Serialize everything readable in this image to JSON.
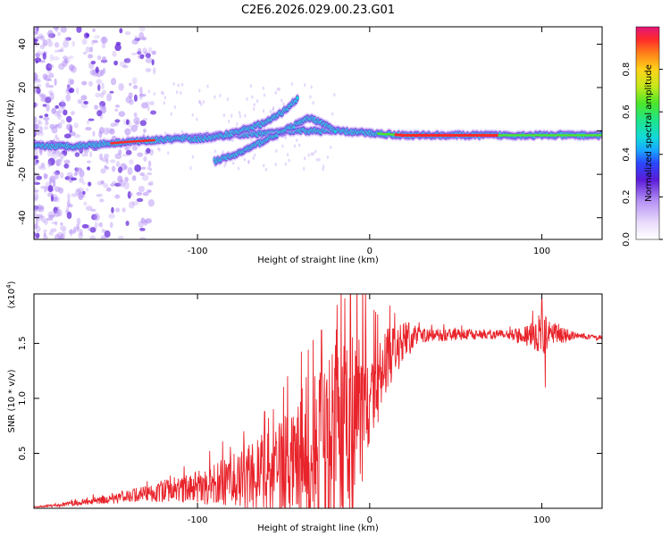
{
  "title": "C2E6.2026.029.00.23.G01",
  "colors": {
    "background": "#ffffff",
    "axis": "#000000",
    "snr_line": "#e8232a",
    "core": "#e0153a",
    "ridge": "#33e2a6",
    "glow": "#2a49ff",
    "haze": "#b692f5"
  },
  "chart_data": [
    {
      "type": "heatmap",
      "name": "spectrogram",
      "xlabel": "Height of straight line (km)",
      "ylabel": "Frequency (Hz)",
      "xlim": [
        -195,
        135
      ],
      "ylim": [
        -50,
        48
      ],
      "xticks": [
        -100,
        0,
        100
      ],
      "xtick_labels": [
        "-100",
        "0",
        "100"
      ],
      "yticks": [
        -40,
        -20,
        0,
        20,
        40
      ],
      "ytick_labels": [
        "-40",
        "-20",
        "0",
        "20",
        "40"
      ],
      "colorbar": {
        "label": "Normalized spectral amplitude",
        "range": [
          0,
          1
        ],
        "ticks": [
          0.0,
          0.2,
          0.4,
          0.6,
          0.8
        ],
        "tick_labels": [
          "0.0",
          "0.2",
          "0.4",
          "0.6",
          "0.8"
        ],
        "stops": [
          [
            0.0,
            "#ffffff"
          ],
          [
            0.08,
            "#e9dcfb"
          ],
          [
            0.18,
            "#b692f5"
          ],
          [
            0.28,
            "#5b1bd8"
          ],
          [
            0.36,
            "#2a49ff"
          ],
          [
            0.42,
            "#18a8ff"
          ],
          [
            0.48,
            "#12d9d9"
          ],
          [
            0.56,
            "#1fe58a"
          ],
          [
            0.64,
            "#4be62a"
          ],
          [
            0.72,
            "#c5e81a"
          ],
          [
            0.8,
            "#ffd21a"
          ],
          [
            0.88,
            "#ff7a1a"
          ],
          [
            0.94,
            "#ff2a2a"
          ],
          [
            1.0,
            "#e0157a"
          ]
        ]
      },
      "ridges": [
        {
          "name": "main-carrier",
          "points": [
            [
              -195,
              -7
            ],
            [
              -170,
              -7
            ],
            [
              -140,
              -5
            ],
            [
              -120,
              -4
            ],
            [
              -100,
              -3
            ],
            [
              -80,
              -2
            ],
            [
              -60,
              -1
            ],
            [
              -40,
              0
            ],
            [
              -20,
              0
            ],
            [
              0,
              -1
            ],
            [
              20,
              -2
            ],
            [
              60,
              -2
            ],
            [
              100,
              -2
            ],
            [
              135,
              -2
            ]
          ]
        },
        {
          "name": "upper-branch",
          "points": [
            [
              -105,
              -4
            ],
            [
              -90,
              -3
            ],
            [
              -75,
              0
            ],
            [
              -60,
              4
            ],
            [
              -50,
              9
            ],
            [
              -42,
              15
            ]
          ]
        },
        {
          "name": "lower-branch",
          "points": [
            [
              -90,
              -14
            ],
            [
              -78,
              -11
            ],
            [
              -65,
              -6
            ],
            [
              -55,
              -2
            ],
            [
              -45,
              2
            ],
            [
              -35,
              6
            ],
            [
              -28,
              4
            ],
            [
              -20,
              0
            ]
          ]
        }
      ]
    },
    {
      "type": "line",
      "name": "snr",
      "xlabel": "Height of straight line (km)",
      "ylabel": "SNR (10 * v/v)",
      "scale_note": "(x10^4)",
      "scale_base": "(x10",
      "scale_exp": "4",
      "scale_close": ")",
      "xlim": [
        -195,
        135
      ],
      "ylim": [
        0,
        1.95
      ],
      "xticks": [
        -100,
        0,
        100
      ],
      "xtick_labels": [
        "-100",
        "0",
        "100"
      ],
      "yticks": [
        0.5,
        1.0,
        1.5
      ],
      "ytick_labels": [
        "0.5",
        "1.0",
        "1.5"
      ],
      "envelope": [
        [
          -195,
          0.01
        ],
        [
          -180,
          0.03
        ],
        [
          -160,
          0.07
        ],
        [
          -140,
          0.11
        ],
        [
          -120,
          0.15
        ],
        [
          -100,
          0.19
        ],
        [
          -80,
          0.24
        ],
        [
          -65,
          0.3
        ],
        [
          -55,
          0.34
        ],
        [
          -45,
          0.37
        ],
        [
          -35,
          0.45
        ],
        [
          -28,
          0.55
        ],
        [
          -22,
          0.62
        ],
        [
          -15,
          0.7
        ],
        [
          -10,
          0.8
        ],
        [
          -5,
          0.9
        ],
        [
          0,
          1.02
        ],
        [
          5,
          1.15
        ],
        [
          10,
          1.3
        ],
        [
          15,
          1.43
        ],
        [
          22,
          1.54
        ],
        [
          30,
          1.57
        ],
        [
          50,
          1.58
        ],
        [
          80,
          1.58
        ],
        [
          100,
          1.58
        ],
        [
          120,
          1.57
        ],
        [
          135,
          1.55
        ]
      ],
      "noise_fraction": [
        [
          -195,
          0.6
        ],
        [
          -130,
          0.7
        ],
        [
          -100,
          1.0
        ],
        [
          -80,
          1.3
        ],
        [
          -60,
          1.6
        ],
        [
          -40,
          1.8
        ],
        [
          -20,
          1.85
        ],
        [
          -10,
          1.6
        ],
        [
          0,
          0.55
        ],
        [
          15,
          0.2
        ],
        [
          30,
          0.05
        ],
        [
          80,
          0.03
        ],
        [
          95,
          0.1
        ],
        [
          100,
          0.16
        ],
        [
          105,
          0.1
        ],
        [
          120,
          0.02
        ],
        [
          135,
          0.02
        ]
      ],
      "peak_values": [
        {
          "x": -61,
          "y": 0.88
        },
        {
          "x": -28,
          "y": 1.62
        },
        {
          "x": -19,
          "y": 1.85
        },
        {
          "x": 100,
          "y": 1.9
        },
        {
          "x": 102,
          "y": 1.1
        }
      ]
    }
  ]
}
